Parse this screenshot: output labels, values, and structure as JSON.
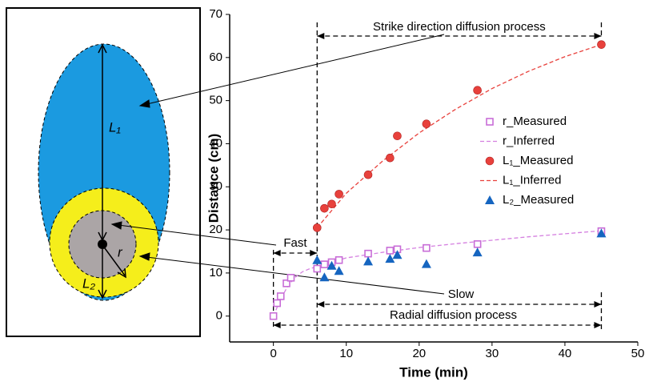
{
  "chart_data": {
    "type": "scatter",
    "x_label": "Time (min)",
    "y_label": "Distance (cm)",
    "xlim": [
      -6,
      50
    ],
    "xticks": [
      0,
      10,
      20,
      30,
      40,
      50
    ],
    "ylim": [
      -6,
      70
    ],
    "yticks": [
      0,
      10,
      20,
      30,
      40,
      50,
      60,
      70
    ],
    "series": [
      {
        "name": "r_Measured",
        "color": "#c86dd7",
        "marker": "square",
        "x": [
          0,
          0.5,
          1,
          1.8,
          2.4,
          6,
          7,
          8,
          9,
          13,
          16,
          17,
          21,
          28,
          45
        ],
        "values": [
          0,
          3,
          4.6,
          7.6,
          8.9,
          11,
          12,
          12.5,
          13,
          14.5,
          15.2,
          15.5,
          15.8,
          16.7,
          19.7
        ]
      },
      {
        "name": "r_Inferred",
        "color": "#d580e0",
        "marker": "dash",
        "x": [
          0,
          1,
          2,
          3,
          4,
          5,
          6,
          10,
          15,
          20,
          25,
          30,
          35,
          40,
          45
        ],
        "values": [
          0,
          4,
          7,
          9,
          10.3,
          11,
          11.5,
          13.5,
          14.8,
          15.9,
          16.8,
          17.6,
          18.4,
          19.1,
          19.8
        ]
      },
      {
        "name": "L₁_Measured",
        "color": "#e8413c",
        "marker": "circle",
        "x": [
          6,
          7,
          8,
          9,
          13,
          16,
          17,
          21,
          28,
          45
        ],
        "values": [
          20.5,
          25,
          26,
          28.3,
          32.8,
          36.7,
          41.8,
          44.6,
          52.4,
          63
        ]
      },
      {
        "name": "L₁_Inferred",
        "color": "#e8413c",
        "marker": "dash",
        "x": [
          6,
          10,
          15,
          20,
          25,
          30,
          35,
          40,
          45
        ],
        "values": [
          20.5,
          28.5,
          36,
          42.5,
          48,
          52.8,
          56.8,
          60.2,
          63
        ]
      },
      {
        "name": "L₂_Measured",
        "color": "#1565c0",
        "marker": "triangle",
        "x": [
          6,
          7,
          8,
          9,
          13,
          16,
          17,
          21,
          28,
          45
        ],
        "values": [
          13,
          9,
          11.7,
          10.5,
          12.7,
          13.3,
          14.2,
          12.1,
          14.8,
          19.2
        ]
      }
    ],
    "annotations": [
      "Strike direction diffusion process",
      "Fast",
      "Slow",
      "Radial diffusion process"
    ],
    "diagram_labels": [
      "L₁",
      "r",
      "L₂"
    ]
  }
}
